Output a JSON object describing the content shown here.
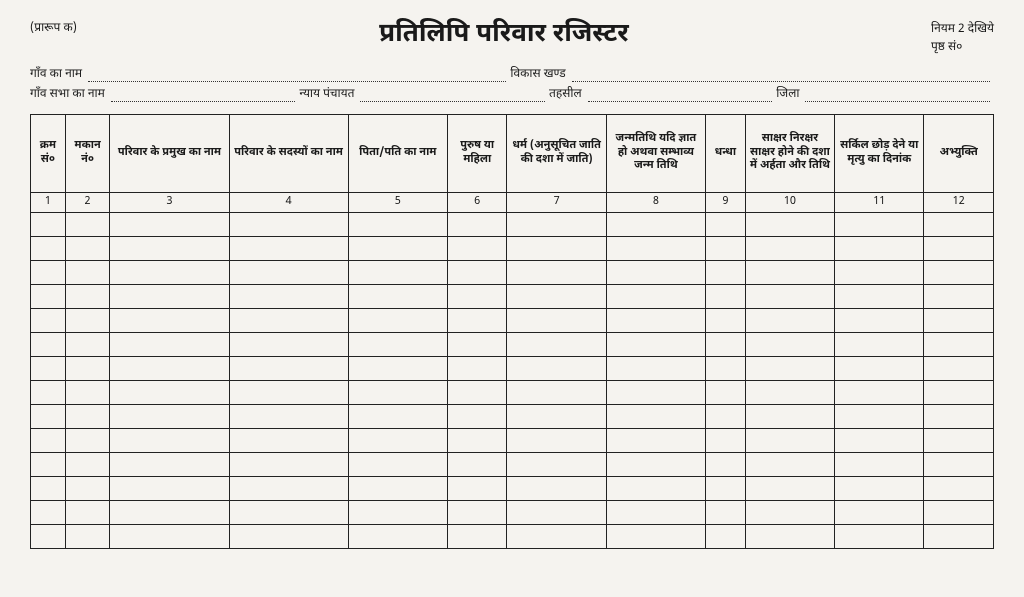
{
  "header": {
    "form_code": "(प्रारूप क)",
    "title": "प्रतिलिपि परिवार रजिस्टर",
    "rule_ref": "नियम 2 देखिये",
    "page_label": "पृष्ठ सं०"
  },
  "meta": {
    "village_name_lbl": "गाँव का नाम",
    "vikas_khand_lbl": "विकास खण्ड",
    "gram_sabha_lbl": "गाँव सभा का नाम",
    "nyay_panchayat_lbl": "न्याय पंचायत",
    "tehsil_lbl": "तहसील",
    "jila_lbl": "जिला"
  },
  "table": {
    "columns": [
      "क्रम सं०",
      "मकान नं०",
      "परिवार के प्रमुख का नाम",
      "परिवार के सदस्यों का नाम",
      "पिता/पति का नाम",
      "पुरुष या महिला",
      "धर्म (अनुसूचित जाति की दशा में जाति)",
      "जन्मतिथि यदि ज्ञात हो अथवा सम्भाव्य जन्म तिथि",
      "धन्धा",
      "साक्षर निरक्षर साक्षर होने की दशा में अर्हता और तिथि",
      "सर्किल छोड़ देने या मृत्यु का दिनांक",
      "अभ्युक्ति"
    ],
    "col_nums": [
      "1",
      "2",
      "3",
      "4",
      "5",
      "6",
      "7",
      "8",
      "9",
      "10",
      "11",
      "12"
    ],
    "empty_row_count": 14,
    "border_color": "#222222",
    "background_color": "#f5f3ef",
    "header_fontsize": 11
  }
}
